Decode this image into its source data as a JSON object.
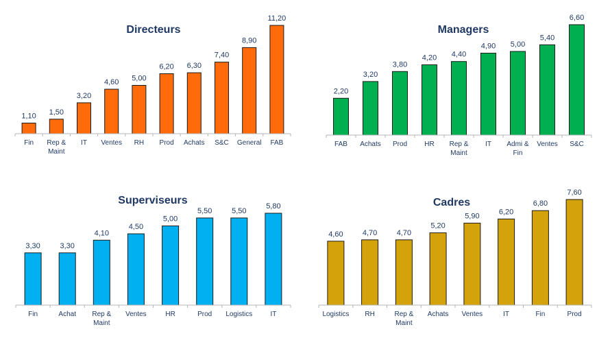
{
  "chart_data": [
    {
      "type": "bar",
      "title": "Directeurs",
      "color": "#ff6a0b",
      "categories": [
        [
          "Fin"
        ],
        [
          "Rep &",
          "Maint"
        ],
        [
          "IT"
        ],
        [
          "Ventes"
        ],
        [
          "RH"
        ],
        [
          "Prod"
        ],
        [
          "Achats"
        ],
        [
          "S&C"
        ],
        [
          "General"
        ],
        [
          "FAB"
        ]
      ],
      "values": [
        1.1,
        1.5,
        3.2,
        4.6,
        5.0,
        6.2,
        6.3,
        7.4,
        8.9,
        11.2
      ],
      "value_labels": [
        "1,10",
        "1,50",
        "3,20",
        "4,60",
        "5,00",
        "6,20",
        "6,30",
        "7,40",
        "8,90",
        "11,20"
      ],
      "ylim": [
        0,
        11.2
      ],
      "xlabel": "",
      "ylabel": "",
      "grid": false,
      "legend": "none"
    },
    {
      "type": "bar",
      "title": "Managers",
      "color": "#00b050",
      "categories": [
        [
          "FAB"
        ],
        [
          "Achats"
        ],
        [
          "Prod"
        ],
        [
          "HR"
        ],
        [
          "Rep &",
          "Maint"
        ],
        [
          "IT"
        ],
        [
          "Admi &",
          "Fin"
        ],
        [
          "Ventes"
        ],
        [
          "S&C"
        ]
      ],
      "values": [
        2.2,
        3.2,
        3.8,
        4.2,
        4.4,
        4.9,
        5.0,
        5.4,
        6.6
      ],
      "value_labels": [
        "2,20",
        "3,20",
        "3,80",
        "4,20",
        "4,40",
        "4,90",
        "5,00",
        "5,40",
        "6,60"
      ],
      "ylim": [
        0,
        6.6
      ],
      "xlabel": "",
      "ylabel": "",
      "grid": false,
      "legend": "none"
    },
    {
      "type": "bar",
      "title": "Superviseurs",
      "color": "#00b0f0",
      "categories": [
        [
          "Fin"
        ],
        [
          "Achat"
        ],
        [
          "Rep &",
          "Maint"
        ],
        [
          "Ventes"
        ],
        [
          "HR"
        ],
        [
          "Prod"
        ],
        [
          "Logistics"
        ],
        [
          "IT"
        ]
      ],
      "values": [
        3.3,
        3.3,
        4.1,
        4.5,
        5.0,
        5.5,
        5.5,
        5.8
      ],
      "value_labels": [
        "3,30",
        "3,30",
        "4,10",
        "4,50",
        "5,00",
        "5,50",
        "5,50",
        "5,80"
      ],
      "ylim": [
        0,
        5.8
      ],
      "xlabel": "",
      "ylabel": "",
      "grid": false,
      "legend": "none"
    },
    {
      "type": "bar",
      "title": "Cadres",
      "color": "#d4a20a",
      "categories": [
        [
          "Logistics"
        ],
        [
          "RH"
        ],
        [
          "Rep &",
          "Maint"
        ],
        [
          "Achats"
        ],
        [
          "Ventes"
        ],
        [
          "IT"
        ],
        [
          "Fin"
        ],
        [
          "Prod"
        ]
      ],
      "values": [
        4.6,
        4.7,
        4.7,
        5.2,
        5.9,
        6.2,
        6.8,
        7.6
      ],
      "value_labels": [
        "4,60",
        "4,70",
        "4,70",
        "5,20",
        "5,90",
        "6,20",
        "6,80",
        "7,60"
      ],
      "ylim": [
        0,
        7.6
      ],
      "xlabel": "",
      "ylabel": "",
      "grid": false,
      "legend": "none"
    }
  ]
}
